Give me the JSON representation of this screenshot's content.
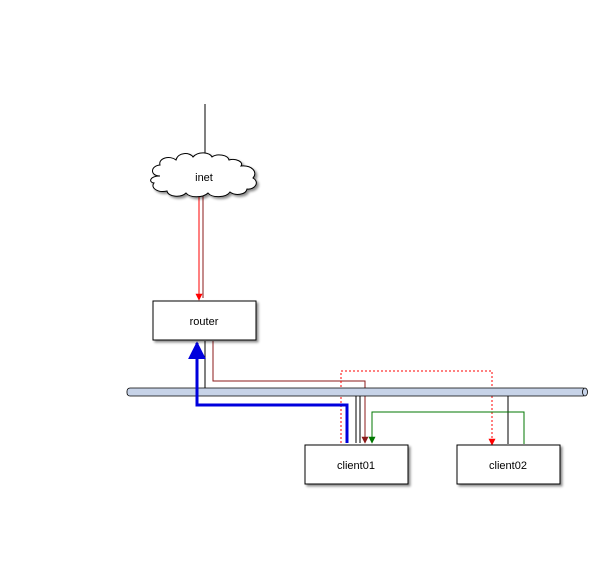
{
  "nodes": {
    "inet": "inet",
    "router": "router",
    "client01": "client01",
    "client02": "client02"
  },
  "colors": {
    "node_fill": "#ffffff",
    "node_stroke": "#000000",
    "bus_fill": "#c7d3e8",
    "link_dark_red": "#8b1a1a",
    "link_red": "#ff0000",
    "link_blue": "#0000dd",
    "link_green": "#007700",
    "uplink": "#000000"
  },
  "icons": {
    "inet": "cloud-icon",
    "network_bus": "ethernet-bus"
  }
}
